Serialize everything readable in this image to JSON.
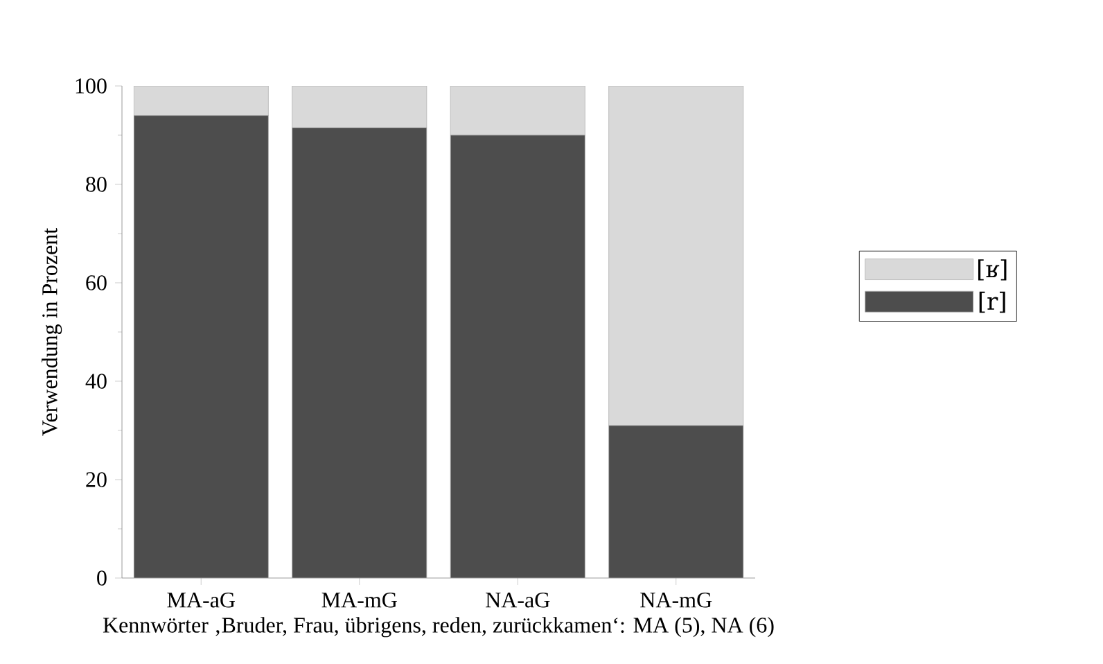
{
  "chart_data": {
    "type": "bar",
    "stacked": true,
    "ylabel": "Verwendung in Prozent",
    "xlabel": "Kennwörter ‚Bruder, Frau, übrigens, reden, zurückkamen‘: MA (5), NA (6)",
    "categories": [
      "MA-aG",
      "MA-mG",
      "NA-aG",
      "NA-mG"
    ],
    "series": [
      {
        "name": "[r]",
        "color": "#4d4d4d",
        "values": [
          94,
          91.5,
          90,
          31
        ]
      },
      {
        "name": "[ʁ]",
        "color": "#d9d9d9",
        "values": [
          6,
          8.5,
          10,
          69
        ]
      }
    ],
    "ylim": [
      0,
      100
    ],
    "yticks": [
      0,
      20,
      40,
      60,
      80,
      100
    ],
    "legend": "right"
  }
}
